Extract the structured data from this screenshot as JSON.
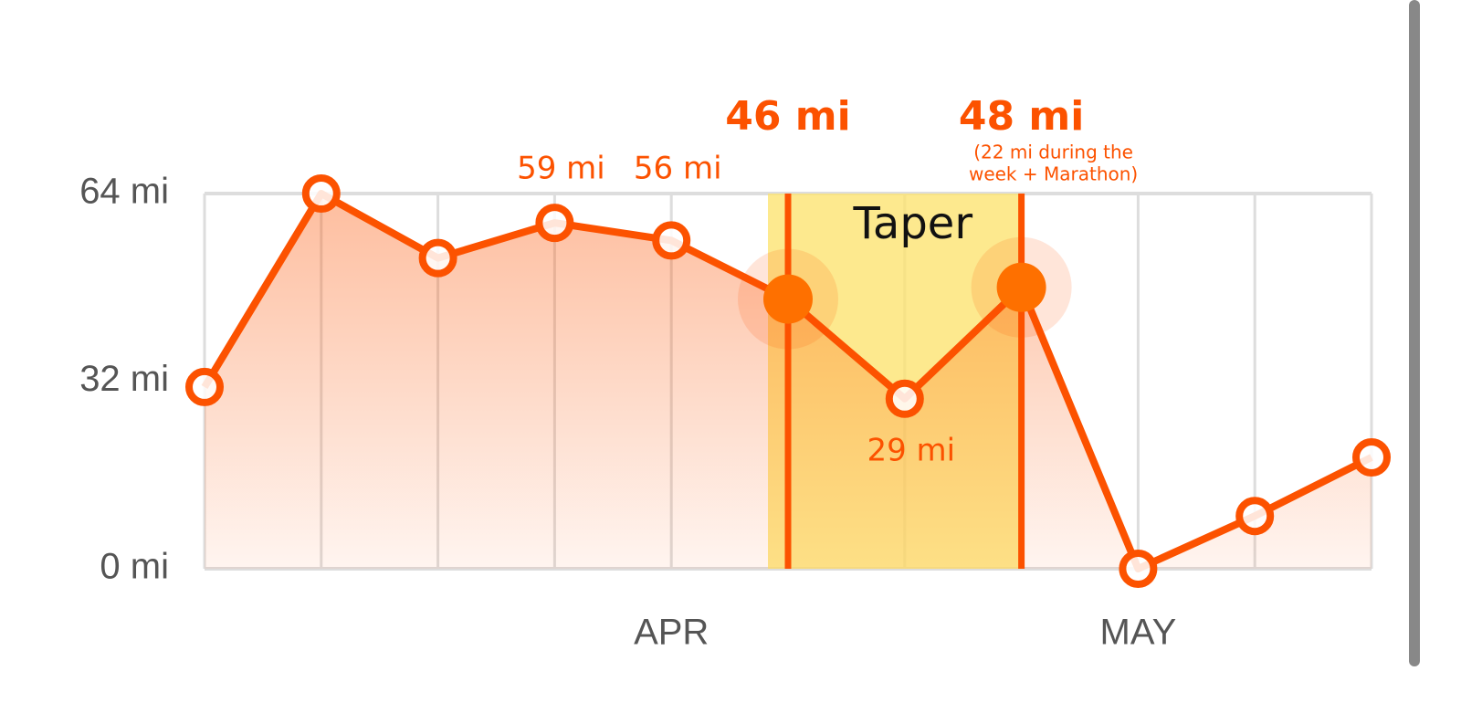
{
  "chart_data": {
    "type": "line",
    "categories": [
      null,
      null,
      null,
      null,
      "APR",
      null,
      null,
      null,
      "MAY",
      null,
      null
    ],
    "values": [
      31,
      64,
      53,
      59,
      56,
      46,
      29,
      48,
      0,
      9,
      19
    ],
    "value_labels": [
      null,
      null,
      null,
      "59 mi",
      "56 mi",
      "46 mi",
      "29 mi",
      "48 mi",
      null,
      null,
      null
    ],
    "color": "#fc5200",
    "ylim": [
      0,
      64
    ],
    "yticks": [
      {
        "value": 0,
        "label": "0 mi"
      },
      {
        "value": 32,
        "label": "32 mi"
      },
      {
        "value": 64,
        "label": "64 mi"
      }
    ],
    "grid": true,
    "highlight": {
      "label": "Taper",
      "points": [
        5,
        7
      ],
      "color": "#fde372"
    },
    "annotation": [
      "(22 mi during the",
      "week + Marathon)"
    ]
  }
}
